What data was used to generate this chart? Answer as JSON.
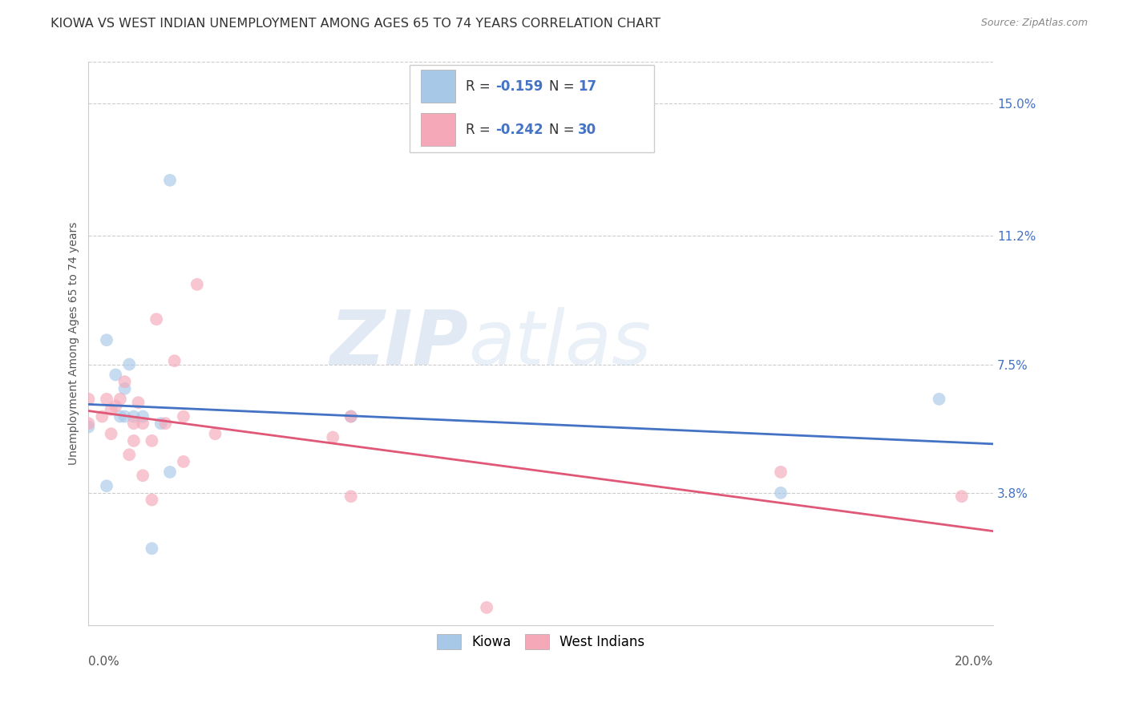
{
  "title": "KIOWA VS WEST INDIAN UNEMPLOYMENT AMONG AGES 65 TO 74 YEARS CORRELATION CHART",
  "source": "Source: ZipAtlas.com",
  "ylabel": "Unemployment Among Ages 65 to 74 years",
  "ytick_labels": [
    "3.8%",
    "7.5%",
    "11.2%",
    "15.0%"
  ],
  "ytick_values": [
    0.038,
    0.075,
    0.112,
    0.15
  ],
  "xlim": [
    0.0,
    0.2
  ],
  "ylim": [
    0.0,
    0.162
  ],
  "background_color": "#ffffff",
  "watermark_zip": "ZIP",
  "watermark_atlas": "atlas",
  "kiowa_color": "#a8c8e8",
  "west_indian_color": "#f4a8b8",
  "kiowa_line_color": "#4472c4",
  "west_indian_line_color": "#e05878",
  "kiowa_R": "-0.159",
  "kiowa_N": "17",
  "west_indian_R": "-0.242",
  "west_indian_N": "30",
  "kiowa_x": [
    0.0,
    0.004,
    0.004,
    0.006,
    0.007,
    0.008,
    0.008,
    0.009,
    0.01,
    0.012,
    0.014,
    0.016,
    0.018,
    0.018,
    0.058,
    0.153,
    0.188
  ],
  "kiowa_y": [
    0.057,
    0.082,
    0.04,
    0.072,
    0.06,
    0.06,
    0.068,
    0.075,
    0.06,
    0.06,
    0.022,
    0.058,
    0.044,
    0.128,
    0.06,
    0.038,
    0.065
  ],
  "west_indian_x": [
    0.0,
    0.0,
    0.003,
    0.004,
    0.005,
    0.005,
    0.006,
    0.007,
    0.008,
    0.009,
    0.01,
    0.01,
    0.011,
    0.012,
    0.012,
    0.014,
    0.014,
    0.015,
    0.017,
    0.019,
    0.021,
    0.021,
    0.024,
    0.028,
    0.054,
    0.058,
    0.058,
    0.088,
    0.153,
    0.193
  ],
  "west_indian_y": [
    0.065,
    0.058,
    0.06,
    0.065,
    0.062,
    0.055,
    0.063,
    0.065,
    0.07,
    0.049,
    0.058,
    0.053,
    0.064,
    0.058,
    0.043,
    0.053,
    0.036,
    0.088,
    0.058,
    0.076,
    0.06,
    0.047,
    0.098,
    0.055,
    0.054,
    0.06,
    0.037,
    0.005,
    0.044,
    0.037
  ],
  "title_fontsize": 11.5,
  "axis_label_fontsize": 10,
  "tick_fontsize": 11,
  "dot_size": 130,
  "dot_alpha": 0.65
}
